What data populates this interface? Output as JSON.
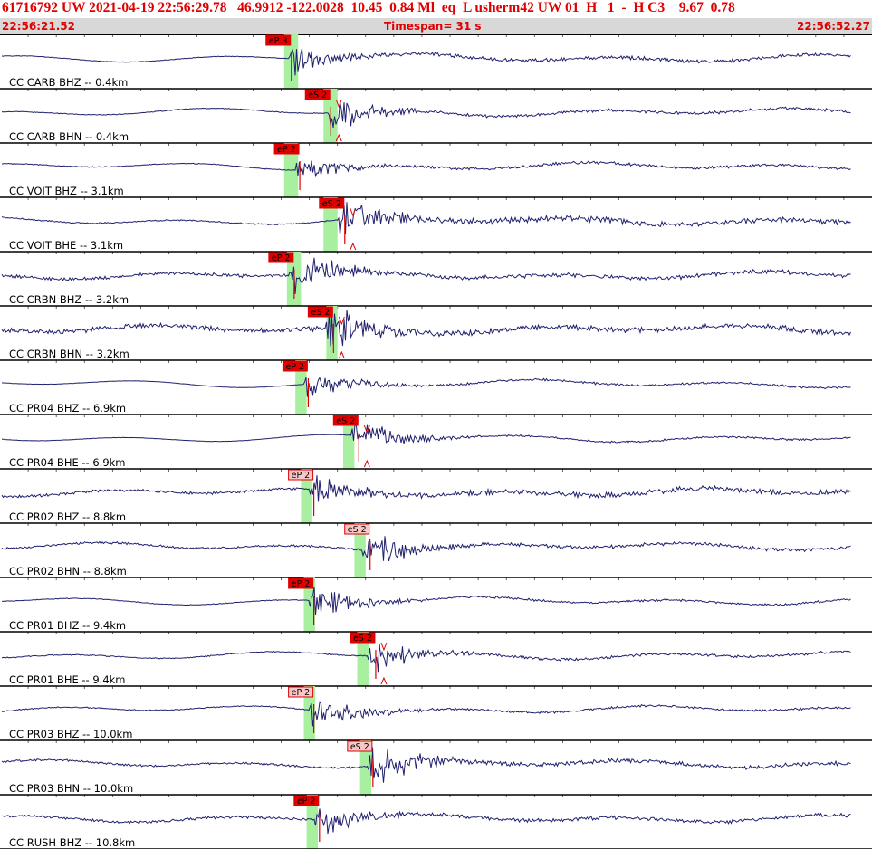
{
  "header": {
    "title": "61716792 UW 2021-04-19 22:56:29.78   46.9912 -122.0028  10.45  0.84 Ml  eq  L usherm42 UW 01  H   1  -  H C3    9.67  0.78",
    "start_time": "22:56:21.52",
    "timespan": "Timespan=  31 s",
    "end_time": "22:56:52.27"
  },
  "colors": {
    "trace": "#20206e",
    "pick_fill": "#e00000",
    "pick_fill_light": "#f8c8c8",
    "window": "#a8f0a0",
    "pick_line": "#e00000"
  },
  "chart_data": {
    "type": "line",
    "title": "",
    "xlim": [
      0,
      31
    ],
    "x_unit": "s",
    "channels": [
      {
        "label": "CC CARB BHZ -- 0.4km",
        "pick": "eP 3",
        "pick_t": 10.1,
        "win": [
          10.1,
          10.6
        ],
        "onset": 10.3,
        "amp": 0.55,
        "pre": 0.02,
        "tail": 0.1,
        "light": false,
        "mark": false
      },
      {
        "label": "CC CARB BHN -- 0.4km",
        "pick": "eS 2",
        "pick_t": 11.5,
        "win": [
          11.5,
          12.0
        ],
        "onset": 11.7,
        "amp": 0.65,
        "pre": 0.02,
        "tail": 0.07,
        "light": false,
        "mark": true
      },
      {
        "label": "CC VOIT BHZ -- 3.1km",
        "pick": "eP 2",
        "pick_t": 10.4,
        "win": [
          10.1,
          10.6
        ],
        "onset": 10.5,
        "amp": 0.45,
        "pre": 0.03,
        "tail": 0.1,
        "light": false,
        "mark": false
      },
      {
        "label": "CC VOIT BHE -- 3.1km",
        "pick": "eS 2",
        "pick_t": 12.0,
        "win": [
          11.5,
          12.0
        ],
        "onset": 12.0,
        "amp": 0.75,
        "pre": 0.03,
        "tail": 0.12,
        "light": false,
        "mark": true
      },
      {
        "label": "CC CRBN BHZ -- 3.2km",
        "pick": "eP 2",
        "pick_t": 10.2,
        "win": [
          10.2,
          10.7
        ],
        "onset": 10.3,
        "amp": 0.85,
        "pre": 0.06,
        "tail": 0.08,
        "light": false,
        "mark": false
      },
      {
        "label": "CC CRBN BHN -- 3.2km",
        "pick": "eS 2",
        "pick_t": 11.6,
        "win": [
          11.6,
          12.0
        ],
        "onset": 11.6,
        "amp": 0.85,
        "pre": 0.09,
        "tail": 0.1,
        "light": false,
        "mark": true
      },
      {
        "label": "CC PR04 BHZ -- 6.9km",
        "pick": "eP 2",
        "pick_t": 10.7,
        "win": [
          10.5,
          10.9
        ],
        "onset": 10.8,
        "amp": 0.5,
        "pre": 0.01,
        "tail": 0.07,
        "light": false,
        "mark": false
      },
      {
        "label": "CC PR04 BHE -- 6.9km",
        "pick": "eS 2",
        "pick_t": 12.5,
        "win": [
          12.2,
          12.6
        ],
        "onset": 12.5,
        "amp": 0.6,
        "pre": 0.01,
        "tail": 0.05,
        "light": false,
        "mark": true
      },
      {
        "label": "CC PR02 BHZ -- 8.8km",
        "pick": "eP 2",
        "pick_t": 10.9,
        "win": [
          10.7,
          11.1
        ],
        "onset": 11.0,
        "amp": 0.6,
        "pre": 0.07,
        "tail": 0.14,
        "light": true,
        "mark": false
      },
      {
        "label": "CC PR02 BHN -- 8.8km",
        "pick": "eS 2",
        "pick_t": 12.9,
        "win": [
          12.6,
          13.0
        ],
        "onset": 12.9,
        "amp": 0.7,
        "pre": 0.05,
        "tail": 0.08,
        "light": true,
        "mark": false
      },
      {
        "label": "CC PR01 BHZ -- 9.4km",
        "pick": "eP 2",
        "pick_t": 10.9,
        "win": [
          10.8,
          11.2
        ],
        "onset": 11.0,
        "amp": 0.6,
        "pre": 0.02,
        "tail": 0.06,
        "light": false,
        "mark": false
      },
      {
        "label": "CC PR01 BHE -- 9.4km",
        "pick": "eS 2",
        "pick_t": 13.1,
        "win": [
          12.7,
          13.1
        ],
        "onset": 13.1,
        "amp": 0.6,
        "pre": 0.03,
        "tail": 0.07,
        "light": false,
        "mark": true
      },
      {
        "label": "CC PR03 BHZ -- 10.0km",
        "pick": "eP 2",
        "pick_t": 10.9,
        "win": [
          10.8,
          11.2
        ],
        "onset": 11.0,
        "amp": 0.6,
        "pre": 0.03,
        "tail": 0.06,
        "light": true,
        "mark": false
      },
      {
        "label": "CC PR03 BHN -- 10.0km",
        "pick": "eS 2",
        "pick_t": 13.0,
        "win": [
          12.8,
          13.2
        ],
        "onset": 13.1,
        "amp": 0.8,
        "pre": 0.04,
        "tail": 0.08,
        "light": true,
        "mark": false
      },
      {
        "label": "CC RUSH BHZ -- 10.8km",
        "pick": "eP 2",
        "pick_t": 11.1,
        "win": [
          10.9,
          11.3
        ],
        "onset": 11.2,
        "amp": 0.6,
        "pre": 0.07,
        "tail": 0.1,
        "light": false,
        "mark": false
      }
    ]
  }
}
